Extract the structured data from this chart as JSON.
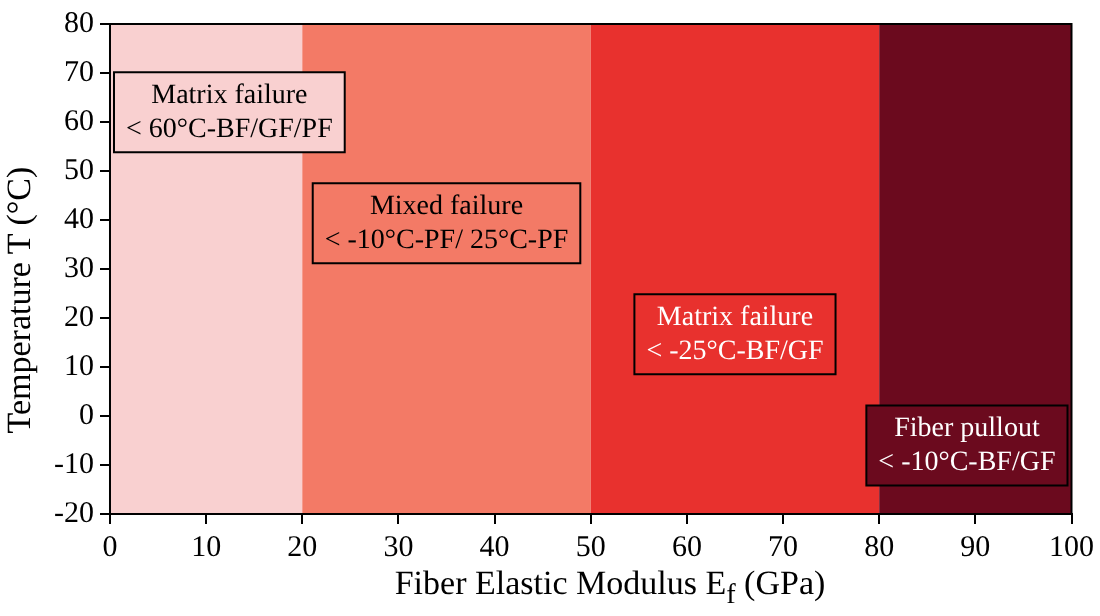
{
  "chart_data": {
    "type": "line",
    "xlabel": "Fiber Elastic Modulus E$_{f}$ (GPa)",
    "ylabel": "Temperature T (°C)",
    "xlim": [
      0,
      100
    ],
    "xticks": [
      0,
      10,
      20,
      30,
      40,
      50,
      60,
      70,
      80,
      90,
      100
    ],
    "ylim": [
      -20,
      80
    ],
    "yticks": [
      -20,
      -10,
      0,
      10,
      20,
      30,
      40,
      50,
      60,
      70,
      80
    ],
    "bands": [
      {
        "axis": "x",
        "from": 0,
        "to": 20,
        "label": "Matrix failure\n< 60°C-BF/GF/PF",
        "color": "#f9d0d0"
      },
      {
        "axis": "x",
        "from": 20,
        "to": 50,
        "label": "Mixed failure\n< -10°C-PF/ 25°C-PF",
        "color": "#f37a66"
      },
      {
        "axis": "x",
        "from": 50,
        "to": 80,
        "label": "Matrix failure\n< -25°C-BF/GF",
        "color": "#e8312e"
      },
      {
        "axis": "x",
        "from": 80,
        "to": 100,
        "label": "Fiber pullout\n< -10°C-BF/GF",
        "color": "#6b0a1e"
      }
    ]
  }
}
